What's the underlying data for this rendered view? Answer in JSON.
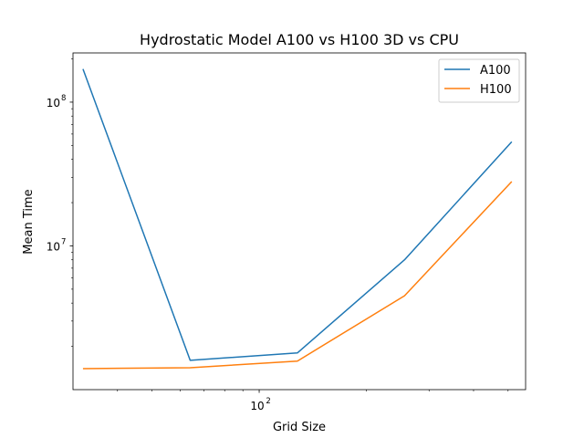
{
  "chart_data": {
    "type": "line",
    "title": "Hydrostatic Model A100 vs H100 3D vs CPU",
    "xlabel": "Grid Size",
    "ylabel": "Mean Time",
    "xscale": "log",
    "yscale": "log",
    "xlim": [
      30,
      560
    ],
    "ylim": [
      1000000,
      220000000
    ],
    "x_major_ticks": [
      {
        "value": 100,
        "label": "10",
        "exp": "2"
      }
    ],
    "x_minor_ticks": [
      40,
      50,
      60,
      70,
      80,
      90,
      200,
      300,
      400,
      500
    ],
    "y_major_ticks": [
      {
        "value": 10000000,
        "label": "10",
        "exp": "7"
      },
      {
        "value": 100000000,
        "label": "10",
        "exp": "8"
      }
    ],
    "y_minor_ticks": [
      2000000,
      3000000,
      4000000,
      5000000,
      6000000,
      7000000,
      8000000,
      9000000,
      20000000,
      30000000,
      40000000,
      50000000,
      60000000,
      70000000,
      80000000,
      90000000,
      200000000
    ],
    "x": [
      32,
      64,
      128,
      256,
      512
    ],
    "series": [
      {
        "name": "A100",
        "color": "#1f77b4",
        "values": [
          170000000,
          1600000,
          1800000,
          8000000,
          53000000
        ]
      },
      {
        "name": "H100",
        "color": "#ff7f0e",
        "values": [
          1400000,
          1420000,
          1580000,
          4500000,
          28000000
        ]
      }
    ],
    "legend": "top-right",
    "grid": false
  }
}
